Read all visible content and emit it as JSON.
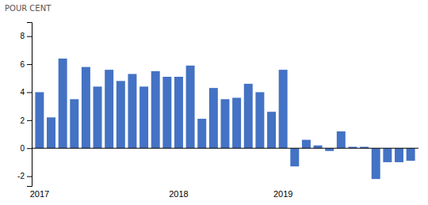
{
  "chart_data": {
    "type": "bar",
    "ylabel": "POUR CENT",
    "categories": [
      "2017",
      null,
      null,
      null,
      null,
      null,
      null,
      null,
      null,
      null,
      null,
      null,
      "2018",
      null,
      null,
      null,
      null,
      null,
      null,
      null,
      null,
      "2019",
      null,
      null,
      null,
      null,
      null,
      null,
      null,
      null,
      null,
      null,
      null
    ],
    "values": [
      4.0,
      2.2,
      6.4,
      3.5,
      5.8,
      4.4,
      5.6,
      4.8,
      5.3,
      4.4,
      5.5,
      5.1,
      5.1,
      5.9,
      2.1,
      4.3,
      3.5,
      3.6,
      4.6,
      4.0,
      2.6,
      5.6,
      -1.3,
      0.6,
      0.2,
      -0.2,
      1.2,
      0.1,
      0.1,
      -2.2,
      -1.0,
      -1.0,
      -0.9
    ],
    "color": "#4472C4",
    "ylim": [
      -2.7,
      9.0
    ],
    "yticks": [
      -2,
      0,
      2,
      4,
      6,
      8
    ],
    "grid": false
  }
}
